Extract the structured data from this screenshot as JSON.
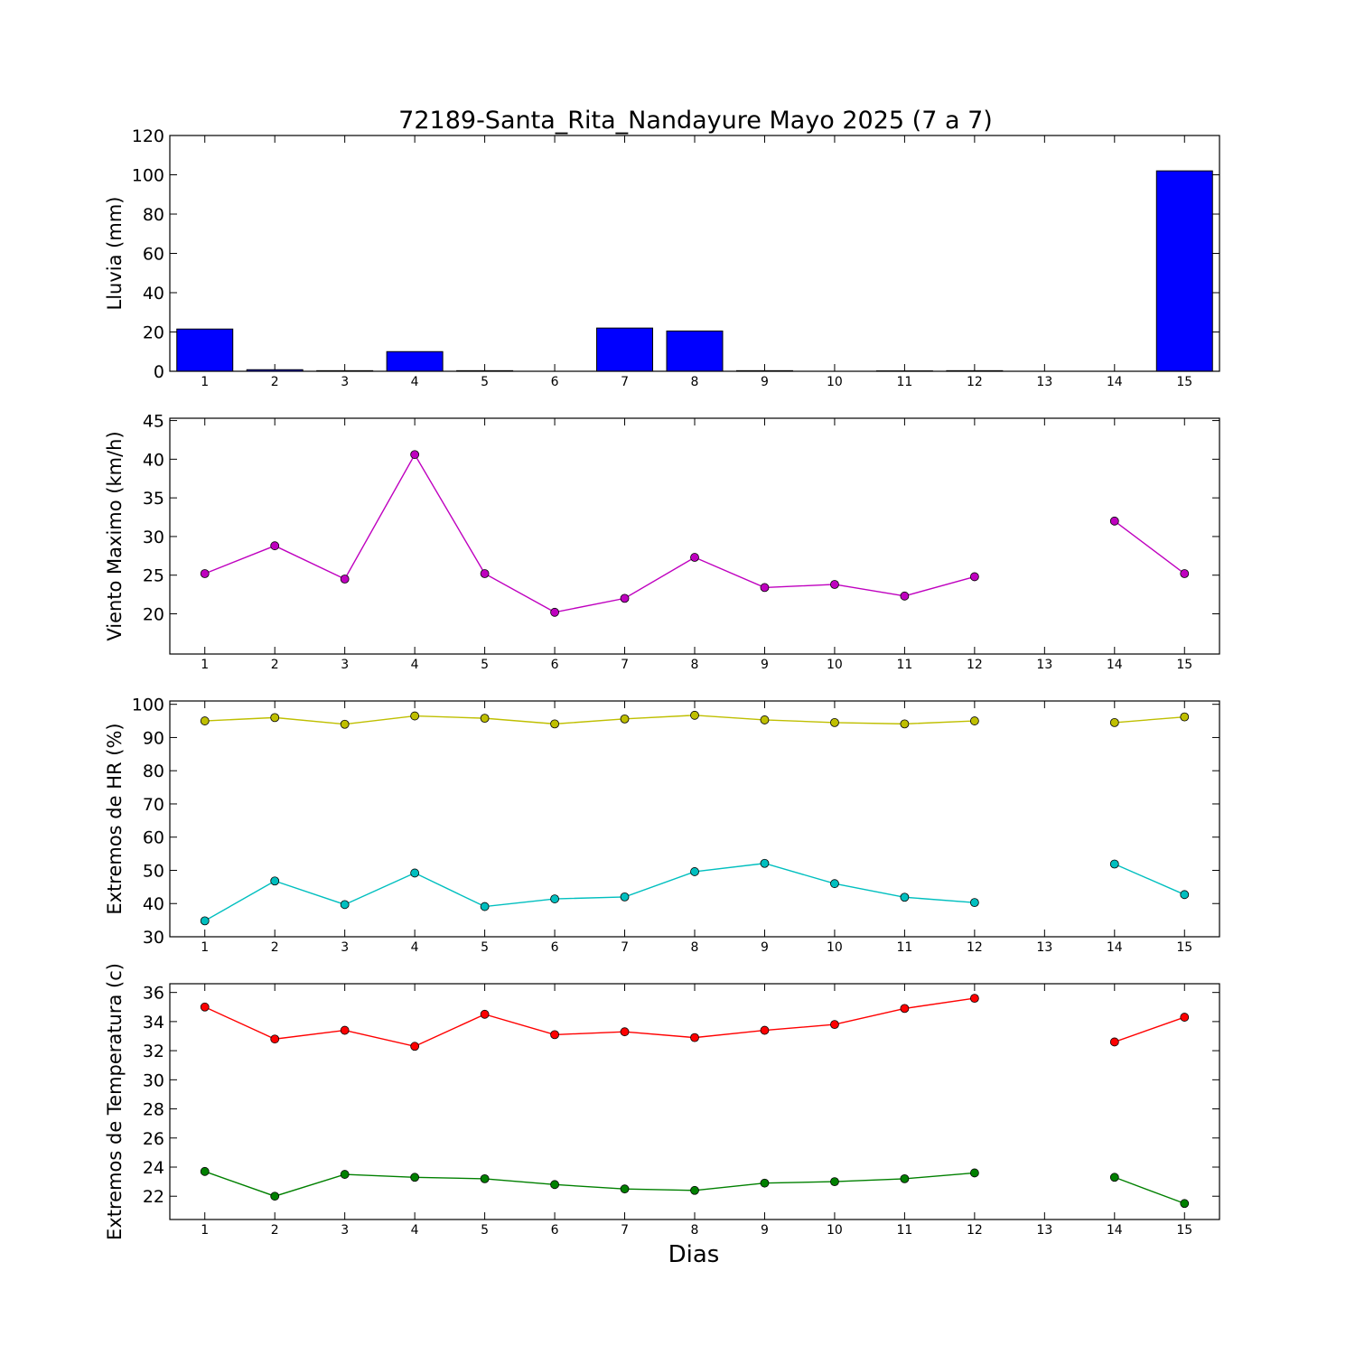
{
  "figure": {
    "title": "72189-Santa_Rita_Nandayure Mayo 2025  (7 a 7)",
    "xlabel": "Dias"
  },
  "chart_data": [
    {
      "type": "bar",
      "ylabel": "Lluvia (mm)",
      "ylim": [
        0,
        120
      ],
      "yticks": [
        0,
        20,
        40,
        60,
        80,
        100,
        120
      ],
      "x": [
        1,
        2,
        3,
        4,
        5,
        6,
        7,
        8,
        9,
        10,
        11,
        12,
        13,
        14,
        15
      ],
      "series": [
        {
          "color": "#0000ff",
          "values": [
            21.5,
            0.8,
            0.3,
            10.0,
            0.3,
            0.0,
            22.0,
            20.5,
            0.3,
            0.0,
            0.2,
            0.3,
            0.0,
            0.0,
            102.0
          ]
        }
      ],
      "grid": false
    },
    {
      "type": "line",
      "ylabel": "Viento Maximo (km/h)",
      "ylim": [
        14.8,
        45.3
      ],
      "yticks": [
        20,
        25,
        30,
        35,
        40,
        45
      ],
      "x": [
        1,
        2,
        3,
        4,
        5,
        6,
        7,
        8,
        9,
        10,
        11,
        12,
        13,
        14,
        15
      ],
      "series": [
        {
          "color": "#bf00bf",
          "values": [
            25.2,
            28.8,
            24.5,
            40.6,
            25.2,
            20.2,
            22.0,
            27.3,
            23.4,
            23.8,
            22.3,
            24.8,
            null,
            32.0,
            25.2
          ]
        }
      ],
      "grid": false
    },
    {
      "type": "line",
      "ylabel": "Extremos de HR (%)",
      "ylim": [
        30,
        101
      ],
      "yticks": [
        30,
        40,
        50,
        60,
        70,
        80,
        90,
        100
      ],
      "x": [
        1,
        2,
        3,
        4,
        5,
        6,
        7,
        8,
        9,
        10,
        11,
        12,
        13,
        14,
        15
      ],
      "series": [
        {
          "color": "#bfbf00",
          "values": [
            95.0,
            96.0,
            94.0,
            96.5,
            95.8,
            94.1,
            95.6,
            96.7,
            95.3,
            94.5,
            94.1,
            95.0,
            null,
            94.5,
            96.2
          ]
        },
        {
          "color": "#00bfbf",
          "values": [
            34.8,
            46.8,
            39.7,
            49.2,
            39.1,
            41.4,
            42.0,
            49.6,
            52.1,
            46.0,
            41.9,
            40.3,
            null,
            51.9,
            42.7
          ]
        }
      ],
      "grid": false
    },
    {
      "type": "line",
      "ylabel": "Extremos de Temperatura (c)",
      "ylim": [
        20.4,
        36.6
      ],
      "yticks": [
        22,
        24,
        26,
        28,
        30,
        32,
        34,
        36
      ],
      "x": [
        1,
        2,
        3,
        4,
        5,
        6,
        7,
        8,
        9,
        10,
        11,
        12,
        13,
        14,
        15
      ],
      "series": [
        {
          "color": "#ff0000",
          "values": [
            35.0,
            32.8,
            33.4,
            32.3,
            34.5,
            33.1,
            33.3,
            32.9,
            33.4,
            33.8,
            34.9,
            35.6,
            null,
            32.6,
            34.3
          ]
        },
        {
          "color": "#008000",
          "values": [
            23.7,
            22.0,
            23.5,
            23.3,
            23.2,
            22.8,
            22.5,
            22.4,
            22.9,
            23.0,
            23.2,
            23.6,
            null,
            23.3,
            21.5
          ]
        }
      ],
      "grid": false
    }
  ]
}
